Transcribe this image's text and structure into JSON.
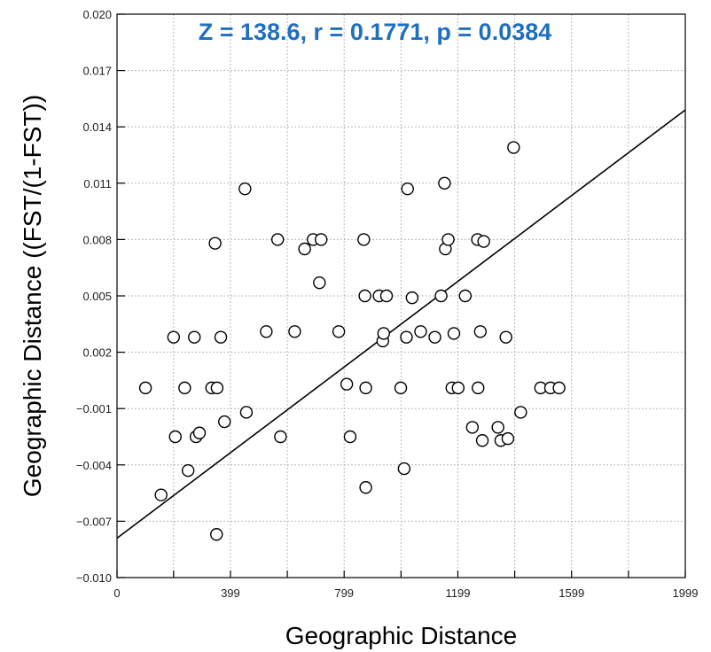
{
  "chart_data": {
    "type": "scatter",
    "title": "",
    "annotation": "Z = 138.6, r = 0.1771, p = 0.0384",
    "annotation_color": "#1f6fbf",
    "xlabel": "Geographic Distance",
    "ylabel": "Geographic Distance ((FST/(1-FST))",
    "xlim": [
      0,
      1999
    ],
    "ylim": [
      -0.01,
      0.02
    ],
    "x_ticks": [
      0,
      399,
      799,
      1199,
      1599,
      1999
    ],
    "x_tick_labels": [
      "0",
      "399",
      "799",
      "1199",
      "1599",
      "1999"
    ],
    "x_minor_ticks": [
      199,
      599,
      999,
      1399,
      1799
    ],
    "y_ticks": [
      -0.01,
      -0.007,
      -0.004,
      -0.001,
      0.002,
      0.005,
      0.008,
      0.011,
      0.014,
      0.017,
      0.02
    ],
    "y_tick_labels": [
      "−0.010",
      "−0.007",
      "−0.004",
      "−0.001",
      "0.002",
      "0.005",
      "0.008",
      "0.011",
      "0.014",
      "0.017",
      "0.020"
    ],
    "grid": true,
    "trend_line": {
      "x": [
        0,
        1999
      ],
      "y": [
        -0.0079,
        0.0149
      ]
    },
    "points": [
      {
        "x": 100,
        "y": 0.0001
      },
      {
        "x": 155,
        "y": -0.0056
      },
      {
        "x": 199,
        "y": 0.0028
      },
      {
        "x": 205,
        "y": -0.0025
      },
      {
        "x": 238,
        "y": 0.0001
      },
      {
        "x": 250,
        "y": -0.0043
      },
      {
        "x": 272,
        "y": 0.0028
      },
      {
        "x": 278,
        "y": -0.0025
      },
      {
        "x": 290,
        "y": -0.0023
      },
      {
        "x": 333,
        "y": 0.0001
      },
      {
        "x": 345,
        "y": 0.0078
      },
      {
        "x": 350,
        "y": -0.0077
      },
      {
        "x": 352,
        "y": 0.0001
      },
      {
        "x": 365,
        "y": 0.0028
      },
      {
        "x": 378,
        "y": -0.0017
      },
      {
        "x": 450,
        "y": 0.0107
      },
      {
        "x": 455,
        "y": -0.0012
      },
      {
        "x": 525,
        "y": 0.0031
      },
      {
        "x": 565,
        "y": 0.008
      },
      {
        "x": 575,
        "y": -0.0025
      },
      {
        "x": 625,
        "y": 0.0031
      },
      {
        "x": 660,
        "y": 0.0075
      },
      {
        "x": 690,
        "y": 0.008
      },
      {
        "x": 712,
        "y": 0.0057
      },
      {
        "x": 718,
        "y": 0.008
      },
      {
        "x": 780,
        "y": 0.0031
      },
      {
        "x": 808,
        "y": 0.0003
      },
      {
        "x": 820,
        "y": -0.0025
      },
      {
        "x": 868,
        "y": 0.008
      },
      {
        "x": 872,
        "y": 0.005
      },
      {
        "x": 875,
        "y": 0.0001
      },
      {
        "x": 875,
        "y": -0.0052
      },
      {
        "x": 922,
        "y": 0.005
      },
      {
        "x": 935,
        "y": 0.0026
      },
      {
        "x": 938,
        "y": 0.003
      },
      {
        "x": 948,
        "y": 0.005
      },
      {
        "x": 998,
        "y": 0.0001
      },
      {
        "x": 1010,
        "y": -0.0042
      },
      {
        "x": 1018,
        "y": 0.0028
      },
      {
        "x": 1022,
        "y": 0.0107
      },
      {
        "x": 1038,
        "y": 0.0049
      },
      {
        "x": 1068,
        "y": 0.0031
      },
      {
        "x": 1118,
        "y": 0.0028
      },
      {
        "x": 1140,
        "y": 0.005
      },
      {
        "x": 1152,
        "y": 0.011
      },
      {
        "x": 1155,
        "y": 0.0075
      },
      {
        "x": 1165,
        "y": 0.008
      },
      {
        "x": 1178,
        "y": 0.0001
      },
      {
        "x": 1185,
        "y": 0.003
      },
      {
        "x": 1200,
        "y": 0.0001
      },
      {
        "x": 1225,
        "y": 0.005
      },
      {
        "x": 1250,
        "y": -0.002
      },
      {
        "x": 1268,
        "y": 0.008
      },
      {
        "x": 1270,
        "y": 0.0001
      },
      {
        "x": 1278,
        "y": 0.0031
      },
      {
        "x": 1285,
        "y": -0.0027
      },
      {
        "x": 1290,
        "y": 0.0079
      },
      {
        "x": 1340,
        "y": -0.002
      },
      {
        "x": 1350,
        "y": -0.0027
      },
      {
        "x": 1368,
        "y": 0.0028
      },
      {
        "x": 1375,
        "y": -0.0026
      },
      {
        "x": 1395,
        "y": 0.0129
      },
      {
        "x": 1420,
        "y": -0.0012
      },
      {
        "x": 1490,
        "y": 0.0001
      },
      {
        "x": 1525,
        "y": 0.0001
      },
      {
        "x": 1555,
        "y": 0.0001
      }
    ]
  }
}
